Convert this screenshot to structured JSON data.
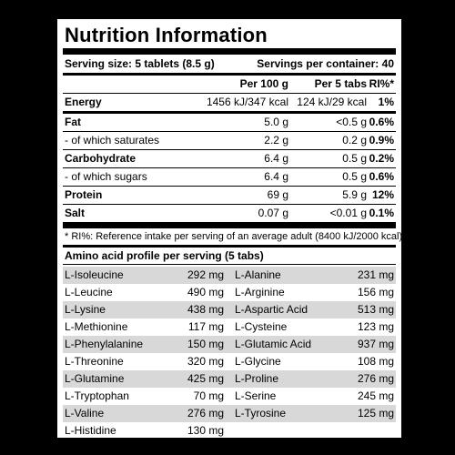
{
  "title": "Nutrition Information",
  "serving": {
    "size": "Serving size: 5 tablets (8.5 g)",
    "per_container": "Servings per container: 40"
  },
  "columns": [
    "",
    "Per 100 g",
    "Per 5 tabs",
    "RI%*"
  ],
  "nutrients": [
    {
      "name": "Energy",
      "per100": "1456 kJ/347 kcal",
      "per5": "124 kJ/29 kcal",
      "ri": "1%"
    },
    {
      "name": "Fat",
      "per100": "5.0 g",
      "per5": "<0.5 g",
      "ri": "0.6%"
    },
    {
      "name": "- of which saturates",
      "per100": "2.2 g",
      "per5": "0.2 g",
      "ri": "0.9%"
    },
    {
      "name": "Carbohydrate",
      "per100": "6.4 g",
      "per5": "0.5 g",
      "ri": "0.2%"
    },
    {
      "name": "- of which sugars",
      "per100": "6.4 g",
      "per5": "0.5 g",
      "ri": "0.6%"
    },
    {
      "name": "Protein",
      "per100": "69 g",
      "per5": "5.9 g",
      "ri": "12%"
    },
    {
      "name": "Salt",
      "per100": "0.07 g",
      "per5": "<0.01 g",
      "ri": "0.1%"
    }
  ],
  "note": "* RI%: Reference intake per serving of an average adult (8400 kJ/2000 kcal).",
  "amino_title": "Amino acid profile per serving (5 tabs)",
  "amino_rows": [
    [
      {
        "name": "L-Isoleucine",
        "value": "292 mg"
      },
      {
        "name": "L-Alanine",
        "value": "231 mg"
      }
    ],
    [
      {
        "name": "L-Leucine",
        "value": "490 mg"
      },
      {
        "name": "L-Arginine",
        "value": "156 mg"
      }
    ],
    [
      {
        "name": "L-Lysine",
        "value": "438 mg"
      },
      {
        "name": "L-Aspartic Acid",
        "value": "513 mg"
      }
    ],
    [
      {
        "name": "L-Methionine",
        "value": "117 mg"
      },
      {
        "name": "L-Cysteine",
        "value": "123 mg"
      }
    ],
    [
      {
        "name": "L-Phenylalanine",
        "value": "150 mg"
      },
      {
        "name": "L-Glutamic Acid",
        "value": "937 mg"
      }
    ],
    [
      {
        "name": "L-Threonine",
        "value": "320 mg"
      },
      {
        "name": "L-Glycine",
        "value": "108 mg"
      }
    ],
    [
      {
        "name": "L-Glutamine",
        "value": "425 mg"
      },
      {
        "name": "L-Proline",
        "value": "276 mg"
      }
    ],
    [
      {
        "name": "L-Tryptophan",
        "value": "70 mg"
      },
      {
        "name": "L-Serine",
        "value": "245 mg"
      }
    ],
    [
      {
        "name": "L-Valine",
        "value": "276 mg"
      },
      {
        "name": "L-Tyrosine",
        "value": "125 mg"
      }
    ],
    [
      {
        "name": "L-Histidine",
        "value": "130 mg"
      },
      {
        "name": "",
        "value": ""
      }
    ]
  ]
}
